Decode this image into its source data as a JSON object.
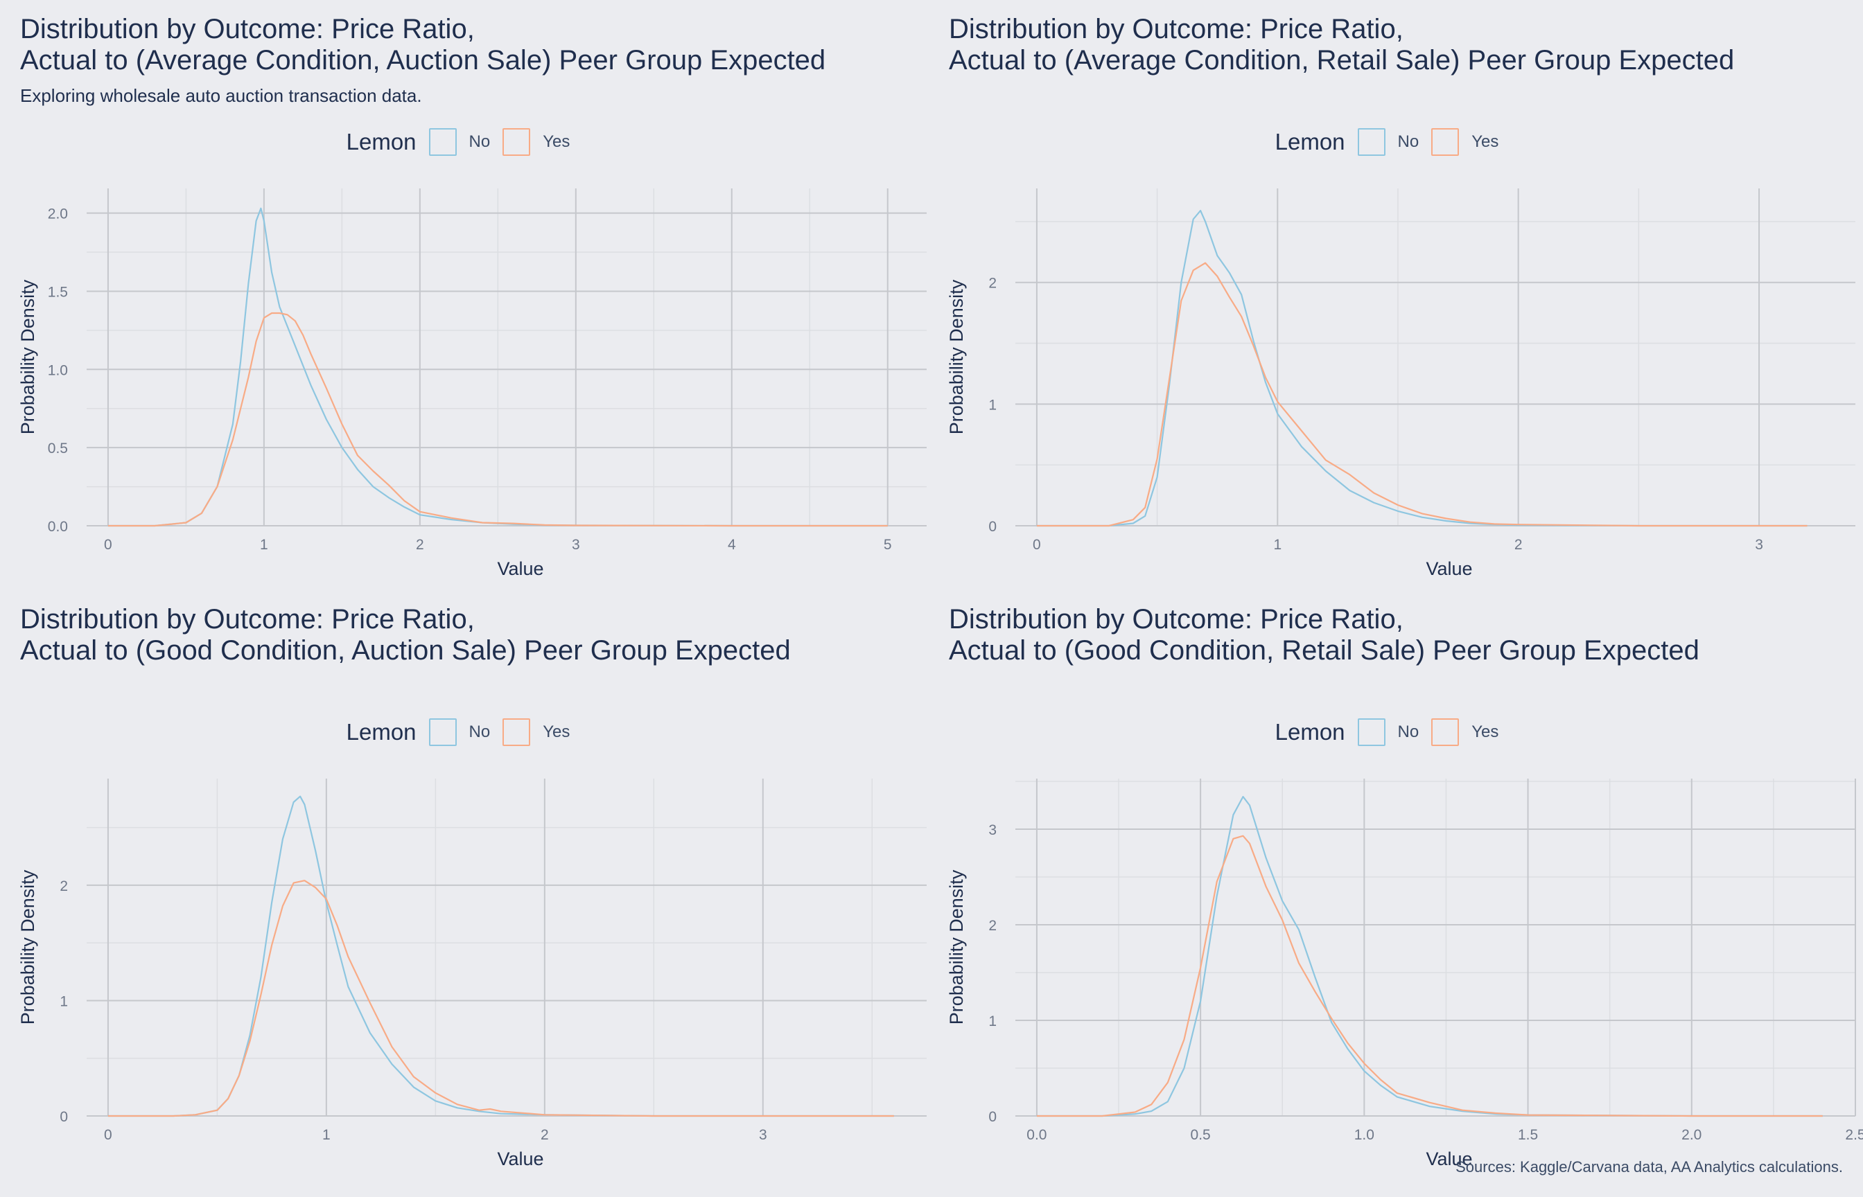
{
  "source_note": "Sources: Kaggle/Carvana data, AA Analytics calculations.",
  "colors": {
    "No": "#8EC6E0",
    "Yes": "#F8AB86",
    "grid_major": "#C5C7CC",
    "grid_minor": "#DCDEE2",
    "text": "#1f2e4d",
    "tick": "#6e7788"
  },
  "chart_data": [
    {
      "type": "line",
      "title_lines": [
        "Distribution by Outcome: Price Ratio,",
        "Actual to (Average Condition, Auction Sale) Peer Group Expected"
      ],
      "subtitle": "Exploring wholesale auto auction transaction data.",
      "legend": {
        "title": "Lemon",
        "labels": [
          "No",
          "Yes"
        ],
        "placement": "top"
      },
      "xlabel": "Value",
      "ylabel": "Probability Density",
      "xlim": [
        0,
        5.25
      ],
      "ylim": [
        0,
        2.14
      ],
      "xticks": [
        0,
        1,
        2,
        3,
        4,
        5
      ],
      "xtick_labels": [
        "0",
        "1",
        "2",
        "3",
        "4",
        "5"
      ],
      "yticks": [
        0,
        0.5,
        1.0,
        1.5,
        2.0
      ],
      "ytick_labels": [
        "0.0",
        "0.5",
        "1.0",
        "1.5",
        "2.0"
      ],
      "series": [
        {
          "name": "No",
          "x": [
            0,
            0.3,
            0.5,
            0.6,
            0.7,
            0.8,
            0.85,
            0.9,
            0.95,
            0.98,
            1.0,
            1.05,
            1.1,
            1.2,
            1.3,
            1.4,
            1.5,
            1.6,
            1.7,
            1.8,
            1.9,
            2.0,
            2.2,
            2.4,
            2.6,
            2.8,
            3.0,
            4.0,
            5.0
          ],
          "y": [
            0,
            0,
            0.02,
            0.08,
            0.25,
            0.65,
            1.05,
            1.55,
            1.95,
            2.03,
            1.95,
            1.62,
            1.4,
            1.15,
            0.9,
            0.68,
            0.5,
            0.36,
            0.25,
            0.18,
            0.12,
            0.07,
            0.04,
            0.02,
            0.01,
            0.004,
            0.002,
            0,
            0
          ]
        },
        {
          "name": "Yes",
          "x": [
            0,
            0.3,
            0.5,
            0.6,
            0.7,
            0.8,
            0.9,
            0.95,
            1.0,
            1.05,
            1.1,
            1.15,
            1.2,
            1.25,
            1.3,
            1.4,
            1.5,
            1.6,
            1.7,
            1.8,
            1.9,
            2.0,
            2.2,
            2.4,
            2.6,
            2.8,
            3.0,
            4.0,
            5.0
          ],
          "y": [
            0,
            0,
            0.02,
            0.08,
            0.25,
            0.55,
            0.95,
            1.18,
            1.33,
            1.36,
            1.36,
            1.35,
            1.31,
            1.22,
            1.1,
            0.88,
            0.65,
            0.45,
            0.35,
            0.26,
            0.16,
            0.09,
            0.05,
            0.02,
            0.015,
            0.005,
            0.002,
            0,
            0
          ]
        }
      ]
    },
    {
      "type": "line",
      "title_lines": [
        "Distribution by Outcome: Price Ratio,",
        "Actual to (Average Condition, Retail Sale) Peer Group Expected"
      ],
      "subtitle": "",
      "legend": {
        "title": "Lemon",
        "labels": [
          "No",
          "Yes"
        ],
        "placement": "top"
      },
      "xlabel": "Value",
      "ylabel": "Probability Density",
      "xlim": [
        0,
        3.4
      ],
      "ylim": [
        0,
        2.75
      ],
      "xticks": [
        0,
        1,
        2,
        3
      ],
      "xtick_labels": [
        "0",
        "1",
        "2",
        "3"
      ],
      "yticks": [
        0,
        1,
        2
      ],
      "ytick_labels": [
        "0",
        "1",
        "2"
      ],
      "series": [
        {
          "name": "No",
          "x": [
            0,
            0.3,
            0.4,
            0.45,
            0.5,
            0.55,
            0.6,
            0.65,
            0.68,
            0.7,
            0.75,
            0.8,
            0.85,
            0.9,
            0.95,
            1.0,
            1.1,
            1.2,
            1.3,
            1.4,
            1.5,
            1.6,
            1.7,
            1.8,
            1.9,
            2.0,
            2.5,
            3.2
          ],
          "y": [
            0,
            0,
            0.02,
            0.08,
            0.4,
            1.15,
            2.0,
            2.52,
            2.59,
            2.5,
            2.22,
            2.08,
            1.9,
            1.52,
            1.18,
            0.92,
            0.65,
            0.45,
            0.29,
            0.19,
            0.12,
            0.07,
            0.04,
            0.02,
            0.01,
            0.005,
            0,
            0
          ]
        },
        {
          "name": "Yes",
          "x": [
            0,
            0.3,
            0.4,
            0.45,
            0.5,
            0.55,
            0.6,
            0.65,
            0.7,
            0.75,
            0.8,
            0.85,
            0.9,
            0.95,
            1.0,
            1.1,
            1.2,
            1.3,
            1.4,
            1.5,
            1.6,
            1.7,
            1.8,
            1.9,
            2.0,
            2.5,
            3.2
          ],
          "y": [
            0,
            0,
            0.05,
            0.15,
            0.55,
            1.2,
            1.85,
            2.1,
            2.16,
            2.05,
            1.88,
            1.72,
            1.48,
            1.22,
            1.02,
            0.78,
            0.54,
            0.42,
            0.27,
            0.17,
            0.1,
            0.06,
            0.03,
            0.015,
            0.01,
            0,
            0
          ]
        }
      ]
    },
    {
      "type": "line",
      "title_lines": [
        "Distribution by Outcome: Price Ratio,",
        "Actual to (Good Condition, Auction Sale) Peer Group Expected"
      ],
      "subtitle": "",
      "legend": {
        "title": "Lemon",
        "labels": [
          "No",
          "Yes"
        ],
        "placement": "top"
      },
      "xlabel": "Value",
      "ylabel": "Probability Density",
      "xlim": [
        0,
        3.75
      ],
      "ylim": [
        0,
        2.9
      ],
      "xticks": [
        0,
        1,
        2,
        3
      ],
      "xtick_labels": [
        "0",
        "1",
        "2",
        "3"
      ],
      "yticks": [
        0,
        1,
        2
      ],
      "ytick_labels": [
        "0",
        "1",
        "2"
      ],
      "series": [
        {
          "name": "No",
          "x": [
            0,
            0.3,
            0.4,
            0.5,
            0.55,
            0.6,
            0.65,
            0.7,
            0.75,
            0.8,
            0.85,
            0.88,
            0.9,
            0.95,
            1.0,
            1.05,
            1.1,
            1.2,
            1.3,
            1.4,
            1.5,
            1.6,
            1.7,
            1.8,
            2.0,
            2.5,
            3.0,
            3.6
          ],
          "y": [
            0,
            0,
            0.01,
            0.05,
            0.15,
            0.35,
            0.7,
            1.2,
            1.85,
            2.4,
            2.72,
            2.77,
            2.7,
            2.3,
            1.85,
            1.48,
            1.12,
            0.72,
            0.45,
            0.25,
            0.13,
            0.07,
            0.04,
            0.02,
            0.01,
            0,
            0,
            0
          ]
        },
        {
          "name": "Yes",
          "x": [
            0,
            0.3,
            0.4,
            0.5,
            0.55,
            0.6,
            0.65,
            0.7,
            0.75,
            0.8,
            0.85,
            0.9,
            0.95,
            1.0,
            1.05,
            1.1,
            1.2,
            1.3,
            1.4,
            1.5,
            1.6,
            1.7,
            1.75,
            1.8,
            2.0,
            2.5,
            3.0,
            3.6
          ],
          "y": [
            0,
            0,
            0.01,
            0.05,
            0.15,
            0.35,
            0.65,
            1.05,
            1.48,
            1.82,
            2.02,
            2.04,
            1.98,
            1.88,
            1.65,
            1.38,
            0.98,
            0.6,
            0.34,
            0.2,
            0.1,
            0.05,
            0.06,
            0.04,
            0.01,
            0,
            0,
            0
          ]
        }
      ]
    },
    {
      "type": "line",
      "title_lines": [
        "Distribution by Outcome: Price Ratio,",
        "Actual to (Good Condition, Retail Sale) Peer Group Expected"
      ],
      "subtitle": "",
      "legend": {
        "title": "Lemon",
        "labels": [
          "No",
          "Yes"
        ],
        "placement": "top"
      },
      "xlabel": "Value",
      "ylabel": "Probability Density",
      "xlim": [
        0,
        2.5
      ],
      "ylim": [
        0,
        3.5
      ],
      "xticks": [
        0,
        0.5,
        1.0,
        1.5,
        2.0,
        2.5
      ],
      "xtick_labels": [
        "0.0",
        "0.5",
        "1.0",
        "1.5",
        "2.0",
        "2.5"
      ],
      "yticks": [
        0,
        1,
        2,
        3
      ],
      "ytick_labels": [
        "0",
        "1",
        "2",
        "3"
      ],
      "series": [
        {
          "name": "No",
          "x": [
            0,
            0.2,
            0.3,
            0.35,
            0.4,
            0.45,
            0.5,
            0.55,
            0.6,
            0.63,
            0.65,
            0.7,
            0.75,
            0.8,
            0.85,
            0.9,
            0.95,
            1.0,
            1.05,
            1.1,
            1.2,
            1.3,
            1.4,
            1.5,
            2.0,
            2.4
          ],
          "y": [
            0,
            0,
            0.02,
            0.05,
            0.15,
            0.5,
            1.2,
            2.3,
            3.15,
            3.34,
            3.25,
            2.7,
            2.25,
            1.95,
            1.45,
            0.98,
            0.7,
            0.47,
            0.32,
            0.2,
            0.1,
            0.05,
            0.02,
            0.01,
            0,
            0
          ]
        },
        {
          "name": "Yes",
          "x": [
            0,
            0.2,
            0.3,
            0.35,
            0.4,
            0.45,
            0.5,
            0.55,
            0.6,
            0.63,
            0.65,
            0.7,
            0.75,
            0.8,
            0.85,
            0.9,
            0.95,
            1.0,
            1.05,
            1.1,
            1.2,
            1.3,
            1.4,
            1.5,
            2.0,
            2.4
          ],
          "y": [
            0,
            0,
            0.04,
            0.12,
            0.35,
            0.8,
            1.55,
            2.45,
            2.9,
            2.93,
            2.85,
            2.4,
            2.05,
            1.6,
            1.3,
            1.02,
            0.76,
            0.55,
            0.38,
            0.24,
            0.14,
            0.06,
            0.03,
            0.01,
            0,
            0
          ]
        }
      ]
    }
  ]
}
